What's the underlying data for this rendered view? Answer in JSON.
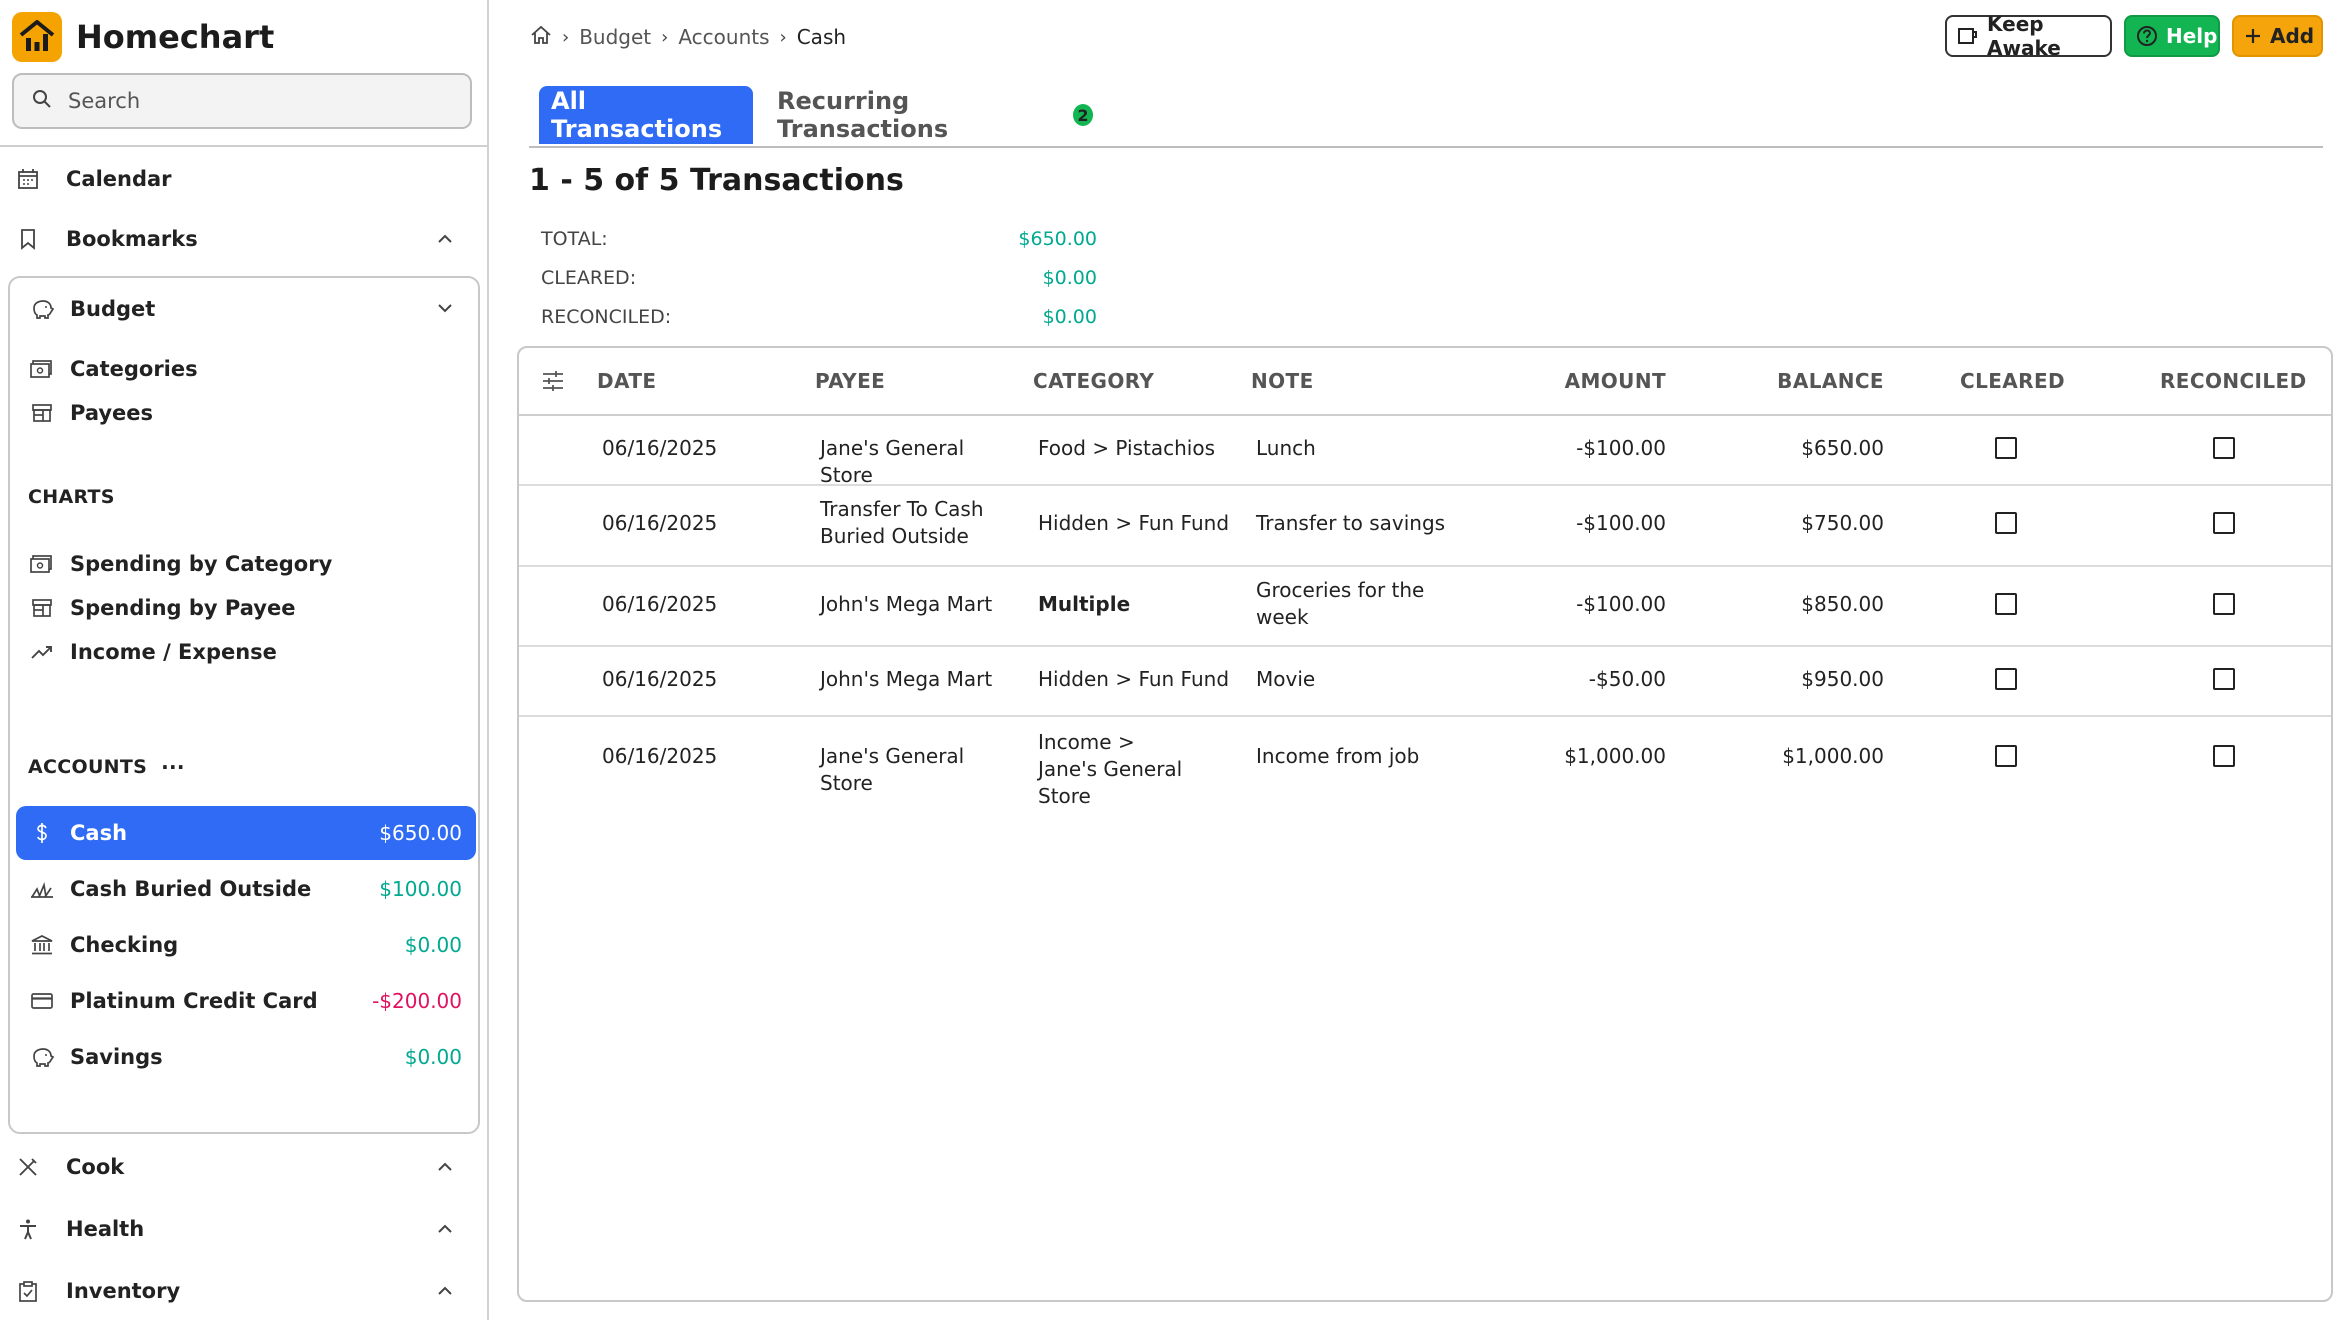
{
  "app": {
    "name": "Homechart",
    "brand_color": "#f5a300"
  },
  "search": {
    "placeholder": "Search"
  },
  "sidebar": {
    "top_items": [
      {
        "label": "Calendar",
        "icon": "calendar-icon"
      },
      {
        "label": "Bookmarks",
        "icon": "bookmark-icon"
      }
    ],
    "budget": {
      "label": "Budget",
      "items": [
        {
          "label": "Categories",
          "icon": "categories-icon"
        },
        {
          "label": "Payees",
          "icon": "store-icon"
        }
      ],
      "charts_label": "CHARTS",
      "charts": [
        {
          "label": "Spending by Category",
          "icon": "categories-icon"
        },
        {
          "label": "Spending by Payee",
          "icon": "store-icon"
        },
        {
          "label": "Income / Expense",
          "icon": "trending-up-icon"
        }
      ],
      "accounts_label": "ACCOUNTS",
      "accounts_more": "···",
      "accounts": [
        {
          "name": "Cash",
          "amount": "$650.00",
          "active": true,
          "icon": "dollar-icon"
        },
        {
          "name": "Cash Buried Outside",
          "amount": "$100.00",
          "icon": "grass-icon"
        },
        {
          "name": "Checking",
          "amount": "$0.00",
          "icon": "bank-icon"
        },
        {
          "name": "Platinum Credit Card",
          "amount": "-$200.00",
          "icon": "credit-card-icon"
        },
        {
          "name": "Savings",
          "amount": "$0.00",
          "icon": "piggy-bank-icon"
        }
      ]
    },
    "bottom_items": [
      {
        "label": "Cook",
        "icon": "utensils-icon"
      },
      {
        "label": "Health",
        "icon": "person-icon"
      },
      {
        "label": "Inventory",
        "icon": "clipboard-icon"
      }
    ]
  },
  "breadcrumb": {
    "items": [
      "Budget",
      "Accounts"
    ],
    "current": "Cash"
  },
  "header": {
    "keep_awake": "Keep Awake",
    "help": "Help",
    "add": "Add"
  },
  "tabs": {
    "all": "All Transactions",
    "recurring": "Recurring Transactions",
    "recurring_count": "2"
  },
  "summary": {
    "title": "1 - 5 of 5 Transactions",
    "total_label": "TOTAL:",
    "total": "$650.00",
    "cleared_label": "CLEARED:",
    "cleared": "$0.00",
    "reconciled_label": "RECONCILED:",
    "reconciled": "$0.00"
  },
  "table": {
    "columns": [
      "DATE",
      "PAYEE",
      "CATEGORY",
      "NOTE",
      "AMOUNT",
      "BALANCE",
      "CLEARED",
      "RECONCILED"
    ],
    "rows": [
      {
        "date": "06/16/2025",
        "payee": "Jane's General Store",
        "category": "Food > Pistachios",
        "note": "Lunch",
        "amount": "-$100.00",
        "balance": "$650.00",
        "cleared": false,
        "reconciled": false
      },
      {
        "date": "06/16/2025",
        "payee": "Transfer To Cash Buried Outside",
        "category": "Hidden > Fun Fund",
        "note": "Transfer to savings",
        "amount": "-$100.00",
        "balance": "$750.00",
        "cleared": false,
        "reconciled": false
      },
      {
        "date": "06/16/2025",
        "payee": "John's Mega Mart",
        "category": "Multiple",
        "note": "Groceries for the week",
        "amount": "-$100.00",
        "balance": "$850.00",
        "cleared": false,
        "reconciled": false
      },
      {
        "date": "06/16/2025",
        "payee": "John's Mega Mart",
        "category": "Hidden > Fun Fund",
        "note": "Movie",
        "amount": "-$50.00",
        "balance": "$950.00",
        "cleared": false,
        "reconciled": false
      },
      {
        "date": "06/16/2025",
        "payee": "Jane's General Store",
        "category": "Income > Jane's General Store",
        "note": "Income from job",
        "amount": "$1,000.00",
        "balance": "$1,000.00",
        "cleared": false,
        "reconciled": false
      }
    ]
  },
  "colors": {
    "accent": "#2f6bf5",
    "positive": "#00a98f",
    "negative": "#e0115f",
    "help": "#13b552",
    "add": "#f6a40b"
  }
}
